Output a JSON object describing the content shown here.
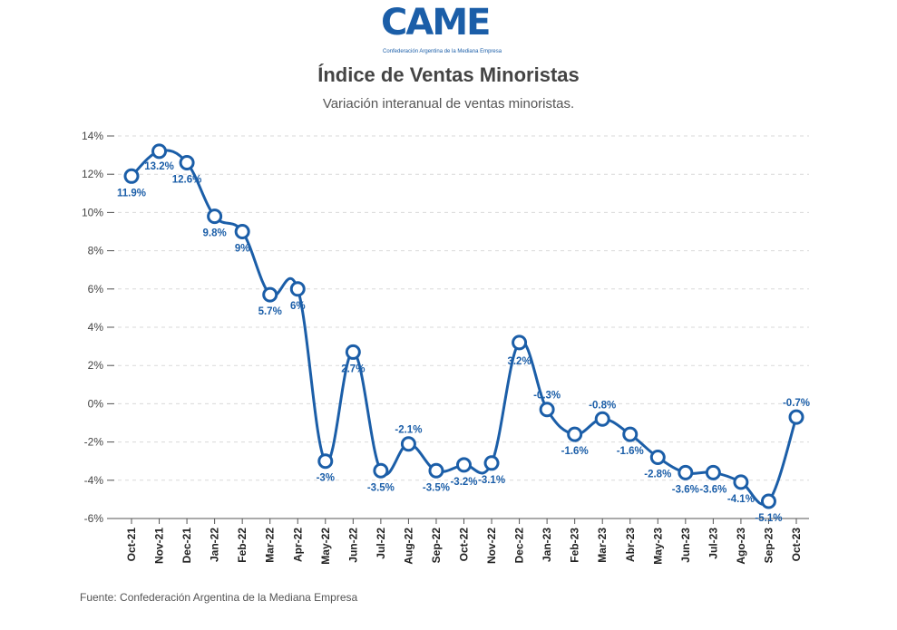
{
  "logo": {
    "text": "CAME",
    "subtitle": "Confederación Argentina de la Mediana Empresa"
  },
  "title": "Índice de Ventas Minoristas",
  "subtitle": "Variación interanual de ventas minoristas.",
  "source": "Fuente: Confederación Argentina de la Mediana Empresa",
  "colors": {
    "line": "#1b5ea8",
    "grid": "#d9d9d9",
    "text": "#444444"
  },
  "chart_data": {
    "type": "line",
    "title": "Índice de Ventas Minoristas",
    "subtitle": "Variación interanual de ventas minoristas.",
    "xlabel": "",
    "ylabel": "",
    "ylim": [
      -6,
      14
    ],
    "yticks": [
      "14%",
      "12%",
      "10%",
      "8%",
      "6%",
      "4%",
      "2%",
      "0%",
      "-2%",
      "-4%",
      "-6%"
    ],
    "ytick_values": [
      14,
      12,
      10,
      8,
      6,
      4,
      2,
      0,
      -2,
      -4,
      -6
    ],
    "grid": "horizontal dashed",
    "categories": [
      "Oct-21",
      "Nov-21",
      "Dec-21",
      "Jan-22",
      "Feb-22",
      "Mar-22",
      "Apr-22",
      "May-22",
      "Jun-22",
      "Jul-22",
      "Aug-22",
      "Sep-22",
      "Oct-22",
      "Nov-22",
      "Dec-22",
      "Jan-23",
      "Feb-23",
      "Mar-23",
      "Abr-23",
      "May-23",
      "Jun-23",
      "Jul-23",
      "Ago-23",
      "Sep-23",
      "Oct-23"
    ],
    "series": [
      {
        "values": [
          11.9,
          13.2,
          12.6,
          9.8,
          9,
          5.7,
          6,
          -3,
          2.7,
          -3.5,
          -2.1,
          -3.5,
          -3.2,
          -3.1,
          3.2,
          -0.3,
          -1.6,
          -0.8,
          -1.6,
          -2.8,
          -3.6,
          -3.6,
          -4.1,
          -5.1,
          -0.7
        ],
        "labels": [
          "11.9%",
          "13.2%",
          "12.6%",
          "9.8%",
          "9%",
          "5.7%",
          "6%",
          "-3%",
          "2.7%",
          "-3.5%",
          "-2.1%",
          "-3.5%",
          "-3.2%",
          "-3.1%",
          "3.2%",
          "-0.3%",
          "-1.6%",
          "-0.8%",
          "-1.6%",
          "-2.8%",
          "-3.6%",
          "-3.6%",
          "-4.1%",
          "-5.1%",
          "-0.7%"
        ]
      }
    ]
  }
}
